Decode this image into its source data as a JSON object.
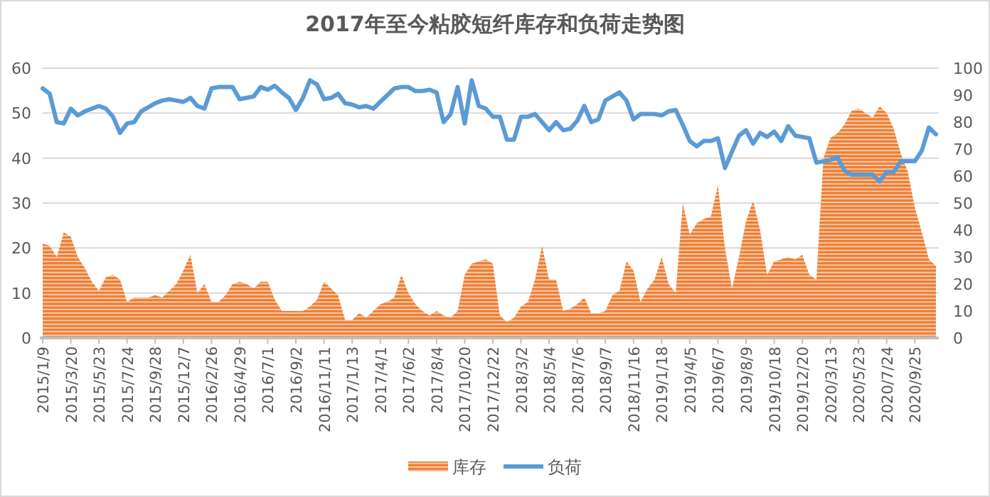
{
  "chart_data": {
    "type": "line",
    "title": "2017年至今粘胶短纤库存和负荷走势图",
    "categories": [
      "2015/1/9",
      null,
      null,
      null,
      "2015/3/20",
      null,
      null,
      null,
      "2015/5/23",
      null,
      null,
      null,
      "2015/7/24",
      null,
      null,
      null,
      "2015/9/28",
      null,
      null,
      null,
      "2015/12/7",
      null,
      null,
      null,
      "2016/2/26",
      null,
      null,
      null,
      "2016/4/29",
      null,
      null,
      null,
      "2016/7/1",
      null,
      null,
      null,
      "2016/9/2",
      null,
      null,
      null,
      "2016/11/11",
      null,
      null,
      null,
      "2017/1/13",
      null,
      null,
      null,
      "2017/4/1",
      null,
      null,
      null,
      "2017/6/2",
      null,
      null,
      null,
      "2017/8/4",
      null,
      null,
      null,
      "2017/10/20",
      null,
      null,
      null,
      "2017/12/22",
      null,
      null,
      null,
      "2018/3/2",
      null,
      null,
      null,
      "2018/5/4",
      null,
      null,
      null,
      "2018/7/6",
      null,
      null,
      null,
      "2018/9/7",
      null,
      null,
      null,
      "2018/11/16",
      null,
      null,
      null,
      "2019/1/18",
      null,
      null,
      null,
      "2019/4/5",
      null,
      null,
      null,
      "2019/6/7",
      null,
      null,
      null,
      "2019/8/9",
      null,
      null,
      null,
      "2019/10/18",
      null,
      null,
      null,
      "2019/12/20",
      null,
      null,
      null,
      "2020/3/13",
      null,
      null,
      null,
      "2020/5/23",
      null,
      null,
      null,
      "2020/7/24",
      null,
      null,
      null,
      "2020/9/25",
      null,
      null,
      null
    ],
    "series": [
      {
        "name": "库存",
        "type": "area",
        "axis": "y",
        "color": "#ed7d31",
        "values": [
          21,
          20.5,
          18,
          23.5,
          22.5,
          18,
          15.5,
          12.5,
          10.5,
          13.5,
          14,
          13,
          8,
          9,
          9,
          9,
          9.5,
          9,
          10.5,
          12,
          15,
          18.5,
          10,
          12,
          8,
          8,
          9.5,
          12,
          12.5,
          12,
          11,
          12.5,
          12.5,
          8.5,
          6,
          6,
          6,
          6,
          7,
          8.5,
          12.5,
          11,
          9.5,
          4,
          4,
          5.5,
          4.5,
          6,
          7.5,
          8,
          9,
          14,
          10,
          7.5,
          6,
          5,
          6,
          5,
          4.5,
          6,
          14,
          16.5,
          17,
          17.5,
          16.5,
          5,
          3.5,
          4.5,
          7,
          8,
          13,
          20.5,
          13,
          13,
          6,
          6.5,
          7.5,
          9,
          5.5,
          5.5,
          6,
          9.5,
          10.5,
          17,
          15,
          8,
          11,
          13,
          18,
          12,
          10,
          30,
          23,
          25.5,
          26.5,
          27,
          34,
          20,
          11,
          18,
          26,
          30.5,
          24,
          14,
          17,
          17.5,
          18,
          17.5,
          18.5,
          14,
          13,
          40,
          44.5,
          45.5,
          47.5,
          50.5,
          51,
          50,
          49,
          51.5,
          50,
          46.5,
          41,
          37,
          29,
          23.5,
          17.5,
          16
        ]
      },
      {
        "name": "负荷",
        "axis": "y2",
        "color": "#5b9bd5",
        "values": [
          92.5,
          90.5,
          80,
          79.5,
          85,
          82.5,
          84,
          85,
          86,
          85,
          82,
          76,
          79.5,
          80,
          84,
          85.5,
          87,
          88,
          88.5,
          88,
          87.5,
          89,
          86,
          85,
          92.5,
          93,
          93,
          93,
          88.5,
          89,
          89.5,
          93,
          92,
          93.5,
          91,
          89,
          84.5,
          89,
          95.5,
          94,
          88.5,
          89,
          90.5,
          87,
          86.5,
          85.5,
          86,
          85,
          87.5,
          90,
          92.5,
          93,
          93,
          91.5,
          91.5,
          92,
          91,
          80,
          83,
          93,
          79.5,
          95.5,
          86,
          85,
          82,
          82,
          73.5,
          73.5,
          82,
          82,
          83,
          80,
          77,
          80,
          77,
          77.5,
          80.5,
          86,
          80,
          81,
          88,
          89.5,
          91,
          88,
          81,
          83,
          83,
          83,
          82.5,
          84,
          84.5,
          79,
          73,
          71,
          73,
          73,
          74,
          63,
          69,
          75,
          77,
          72,
          76,
          74.5,
          76.5,
          73,
          78.5,
          75,
          74.5,
          74,
          65,
          65.5,
          66,
          67,
          62,
          60.5,
          60.5,
          60.5,
          60.5,
          58,
          61.5,
          61.5,
          65.5,
          65.5,
          65.5,
          69.5,
          78,
          75.5
        ]
      }
    ],
    "ylim": [
      0,
      60
    ],
    "yticks": [
      0,
      10,
      20,
      30,
      40,
      50,
      60
    ],
    "y2lim": [
      0,
      100
    ],
    "y2ticks": [
      0,
      10,
      20,
      30,
      40,
      50,
      60,
      70,
      80,
      90,
      100
    ],
    "grid": "y",
    "legend": "bottom"
  }
}
